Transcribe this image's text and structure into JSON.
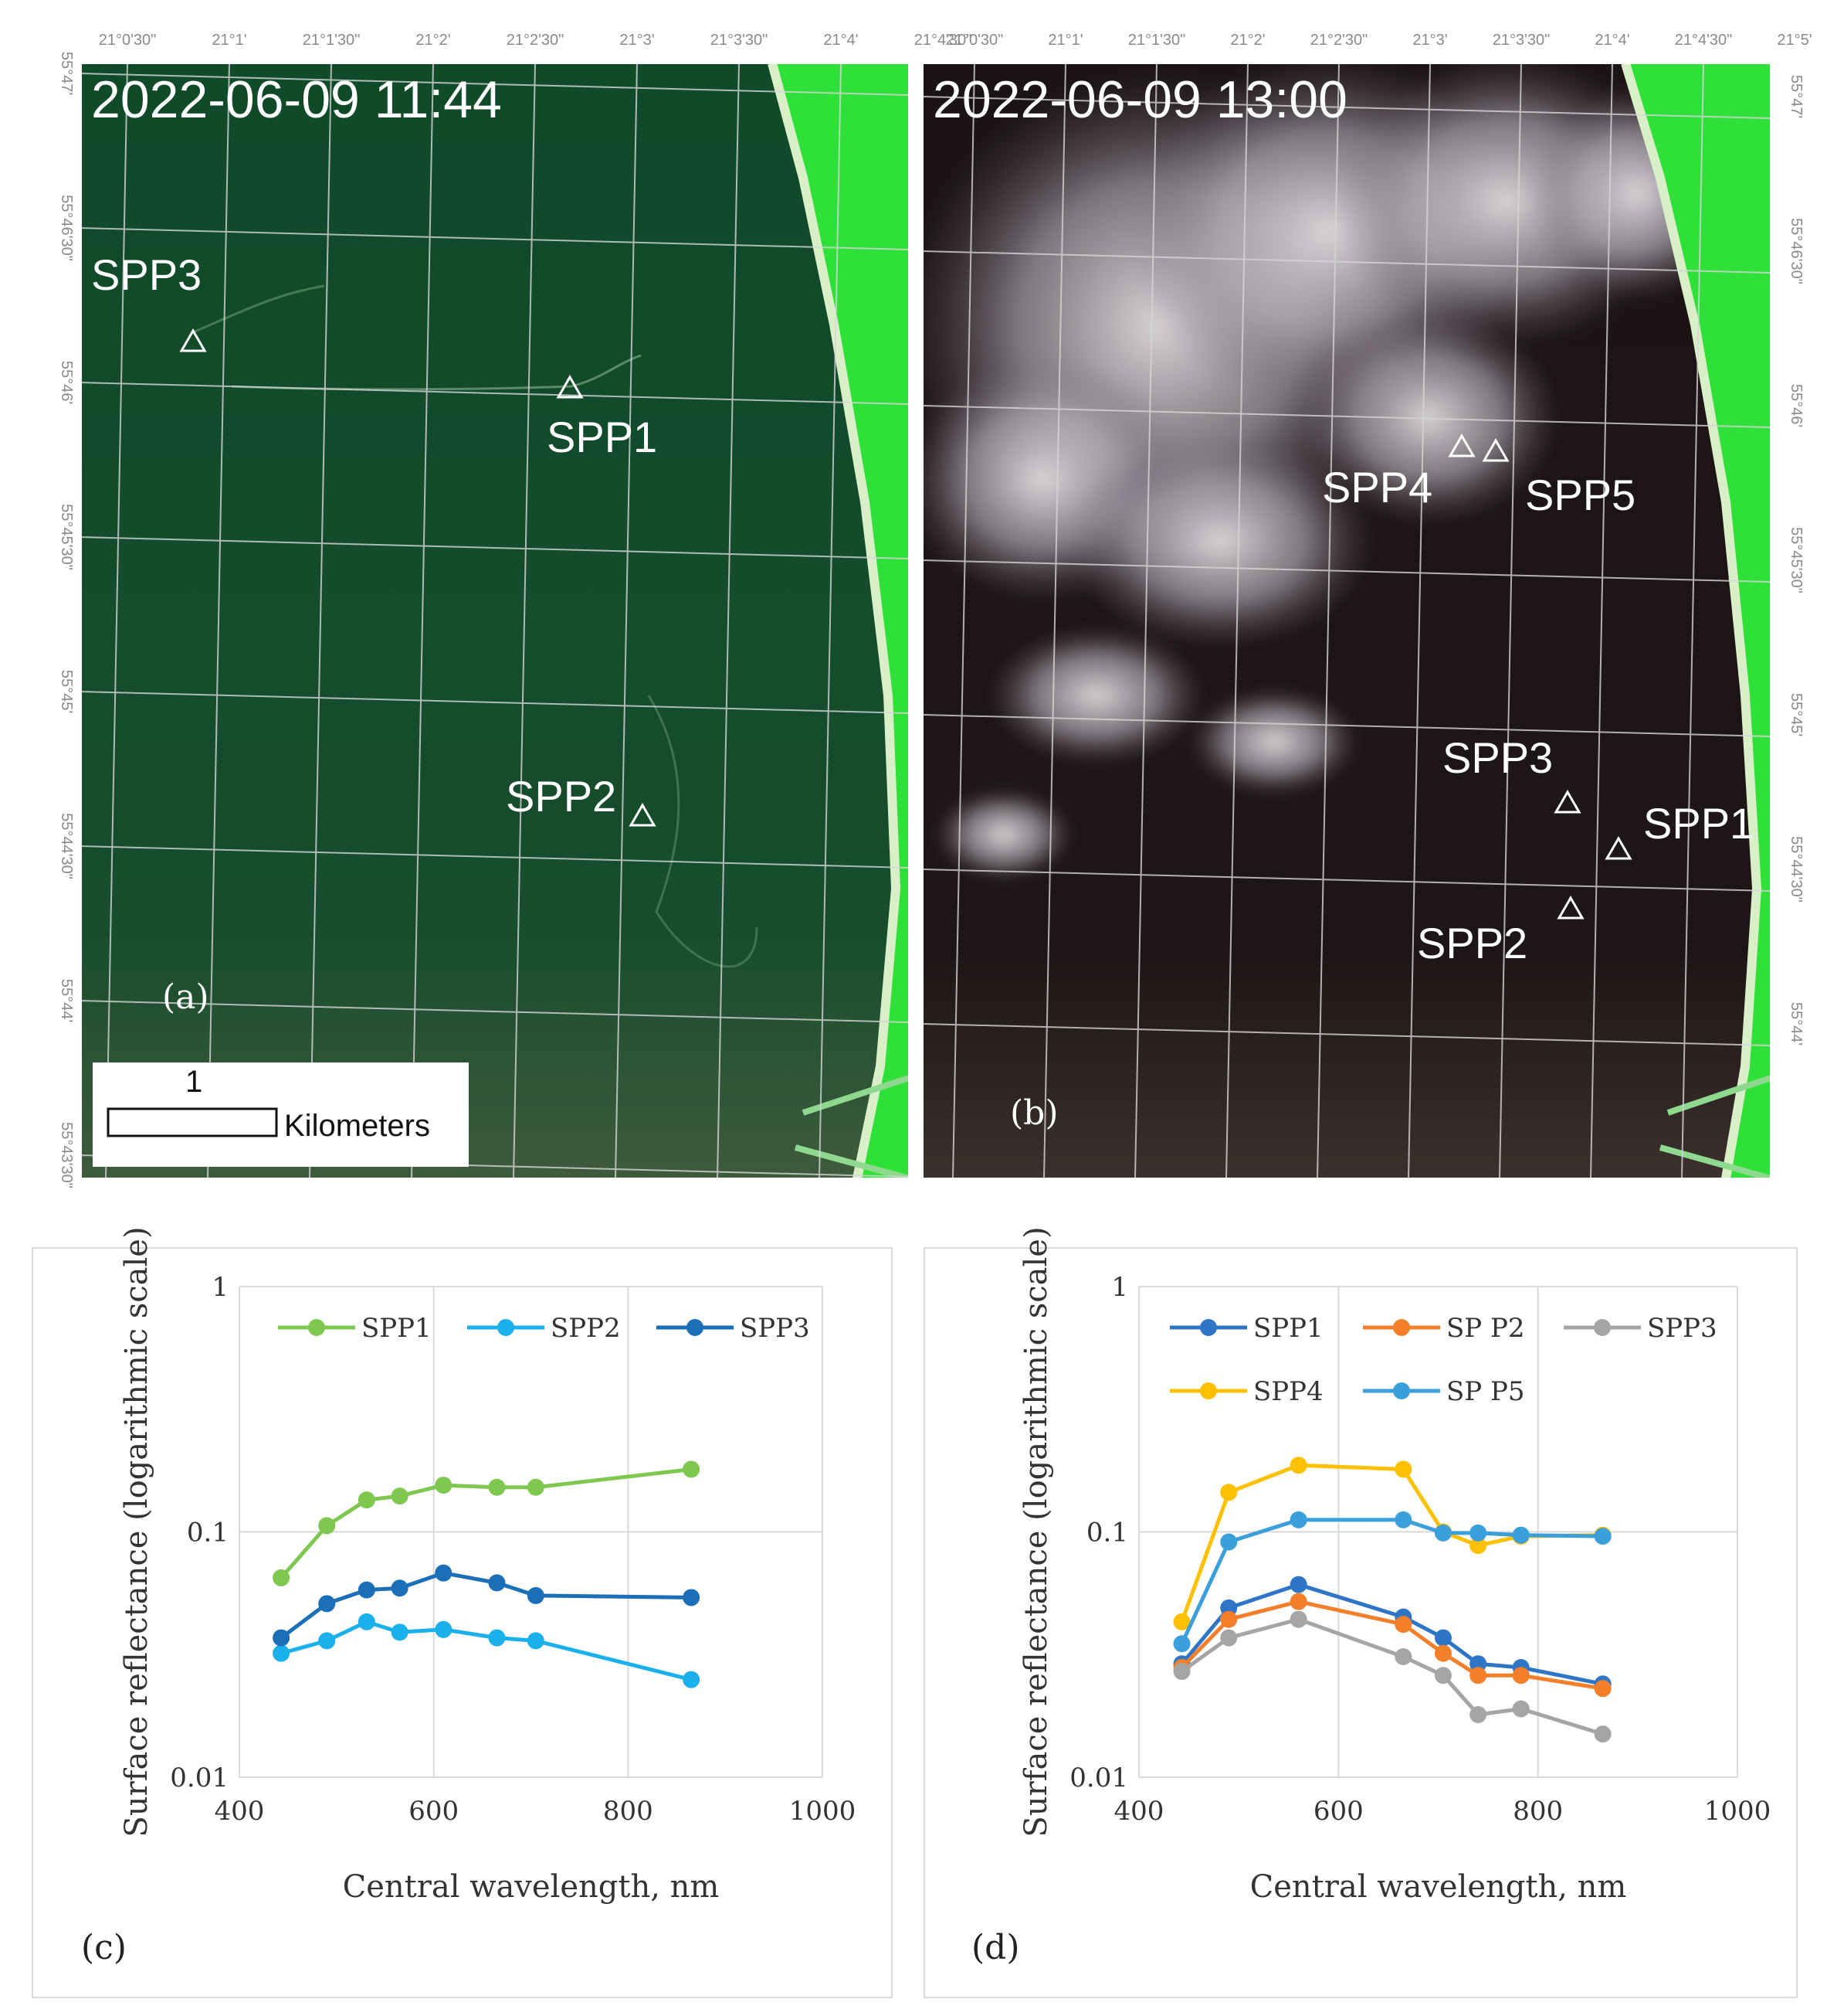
{
  "map_a": {
    "date": "2022-06-09 11:44",
    "panel": "(a)",
    "lon_labels": [
      "21°0'30\"",
      "21°1'",
      "21°1'30\"",
      "21°2'",
      "21°2'30\"",
      "21°3'",
      "21°3'30\"",
      "21°4'",
      "21°4'30\""
    ],
    "lat_labels": [
      "55°47'",
      "55°46'30\"",
      "55°46'",
      "55°45'30\"",
      "55°45'",
      "55°44'30\"",
      "55°44'",
      "55°43'30\""
    ],
    "points": [
      "SPP3",
      "SPP1",
      "SPP2"
    ],
    "scalebar": {
      "value": "1",
      "unit": "Kilometers"
    }
  },
  "map_b": {
    "date": "2022-06-09 13:00",
    "panel": "(b)",
    "lon_labels": [
      "21°0'30\"",
      "21°1'",
      "21°1'30\"",
      "21°2'",
      "21°2'30\"",
      "21°3'",
      "21°3'30\"",
      "21°4'",
      "21°4'30\"",
      "21°5'"
    ],
    "lat_labels": [
      "55°47'",
      "55°46'30\"",
      "55°46'",
      "55°45'30\"",
      "55°45'",
      "55°44'30\"",
      "55°44'"
    ],
    "points": [
      "SPP4",
      "SPP5",
      "SPP3",
      "SPP1",
      "SPP2"
    ]
  },
  "colors": {
    "green": "#7ec850",
    "lightblue": "#1ab0ec",
    "darkblue": "#1a6fb8",
    "blue": "#2e75c6",
    "orange": "#f47f2a",
    "gray": "#a5a5a5",
    "yellow": "#ffc000",
    "midblue": "#3b9fdc"
  },
  "chart_data": [
    {
      "type": "line",
      "panel": "(c)",
      "title": "",
      "xlabel": "Central wavelength, nm",
      "ylabel": "Surface reflectance (logarithmic scale)",
      "yscale": "log",
      "xlim": [
        400,
        1000
      ],
      "ylim": [
        0.01,
        1
      ],
      "xticks": [
        "400",
        "600",
        "800",
        "1000"
      ],
      "yticks": [
        "0.01",
        "0.1",
        "1"
      ],
      "legend_position": "top",
      "series": [
        {
          "name": "SPP1",
          "color": "#7ec850",
          "x": [
            443,
            490,
            531,
            565,
            610,
            665,
            705,
            865
          ],
          "y": [
            0.065,
            0.106,
            0.135,
            0.14,
            0.155,
            0.152,
            0.152,
            0.18
          ]
        },
        {
          "name": "SPP2",
          "color": "#1ab0ec",
          "x": [
            443,
            490,
            531,
            565,
            610,
            665,
            705,
            865
          ],
          "y": [
            0.032,
            0.036,
            0.043,
            0.039,
            0.04,
            0.037,
            0.036,
            0.025
          ]
        },
        {
          "name": "SPP3",
          "color": "#1a6fb8",
          "x": [
            443,
            490,
            531,
            565,
            610,
            665,
            705,
            865
          ],
          "y": [
            0.037,
            0.051,
            0.058,
            0.059,
            0.068,
            0.062,
            0.055,
            0.054
          ]
        }
      ]
    },
    {
      "type": "line",
      "panel": "(d)",
      "title": "",
      "xlabel": "Central wavelength, nm",
      "ylabel": "Surface reflectance (logarithmic scale)",
      "yscale": "log",
      "xlim": [
        400,
        1000
      ],
      "ylim": [
        0.01,
        1
      ],
      "xticks": [
        "400",
        "600",
        "800",
        "1000"
      ],
      "yticks": [
        "0.01",
        "0.1",
        "1"
      ],
      "legend_position": "top",
      "series": [
        {
          "name": "SPP1",
          "color": "#2e75c6",
          "x": [
            443,
            490,
            560,
            665,
            705,
            740,
            783,
            865
          ],
          "y": [
            0.029,
            0.049,
            0.061,
            0.045,
            0.037,
            0.029,
            0.028,
            0.024
          ]
        },
        {
          "name": "SP P2",
          "color": "#f47f2a",
          "x": [
            443,
            490,
            560,
            665,
            705,
            740,
            783,
            865
          ],
          "y": [
            0.028,
            0.044,
            0.052,
            0.042,
            0.032,
            0.026,
            0.026,
            0.023
          ]
        },
        {
          "name": "SPP3",
          "color": "#a5a5a5",
          "x": [
            443,
            490,
            560,
            665,
            705,
            740,
            783,
            865
          ],
          "y": [
            0.027,
            0.037,
            0.044,
            0.031,
            0.026,
            0.018,
            0.019,
            0.015
          ]
        },
        {
          "name": "SPP4",
          "color": "#ffc000",
          "x": [
            443,
            490,
            560,
            665,
            705,
            740,
            783,
            865
          ],
          "y": [
            0.043,
            0.145,
            0.187,
            0.18,
            0.1,
            0.088,
            0.096,
            0.097
          ]
        },
        {
          "name": "SP P5",
          "color": "#3b9fdc",
          "x": [
            443,
            490,
            560,
            665,
            705,
            740,
            783,
            865
          ],
          "y": [
            0.035,
            0.091,
            0.112,
            0.112,
            0.099,
            0.099,
            0.097,
            0.096
          ]
        }
      ]
    }
  ]
}
